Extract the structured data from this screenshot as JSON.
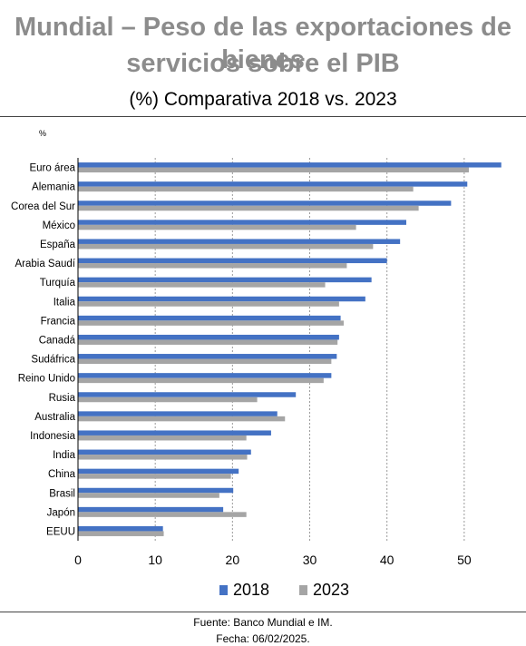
{
  "title_line1": "Mundial – Peso de las exportaciones de bienes",
  "title_line2": "servicios sobre el PIB",
  "subtitle": "(%) Comparativa 2018 vs. 2023",
  "source": "Fuente: Banco Mundial e IM.",
  "date": "Fecha: 06/02/2025.",
  "chart_data": {
    "type": "bar",
    "orientation": "horizontal",
    "unit_label": "%",
    "categories": [
      "Euro área",
      "Alemania",
      "Corea del Sur",
      "México",
      "España",
      "Arabia Saudí",
      "Turquía",
      "Italia",
      "Francia",
      "Canadá",
      "Sudáfrica",
      "Reino Unido",
      "Rusia",
      "Australia",
      "Indonesia",
      "India",
      "China",
      "Brasil",
      "Japón",
      "EEUU"
    ],
    "series": [
      {
        "name": "2018",
        "color": "#4472c4",
        "values": [
          54.8,
          50.4,
          48.3,
          42.5,
          41.7,
          40.0,
          38.0,
          37.2,
          34.0,
          33.8,
          33.5,
          32.8,
          28.2,
          25.8,
          25.0,
          22.4,
          20.8,
          20.1,
          18.8,
          11.0
        ]
      },
      {
        "name": "2023",
        "color": "#a5a5a5",
        "values": [
          50.6,
          43.4,
          44.1,
          36.0,
          38.2,
          34.8,
          32.0,
          33.8,
          34.4,
          33.6,
          32.8,
          31.8,
          23.2,
          26.8,
          21.8,
          21.9,
          19.8,
          18.3,
          21.8,
          11.1
        ]
      }
    ],
    "xlim": [
      0,
      58
    ],
    "xticks": [
      0,
      10,
      20,
      30,
      40,
      50
    ],
    "grid": true,
    "legend_position": "bottom"
  }
}
